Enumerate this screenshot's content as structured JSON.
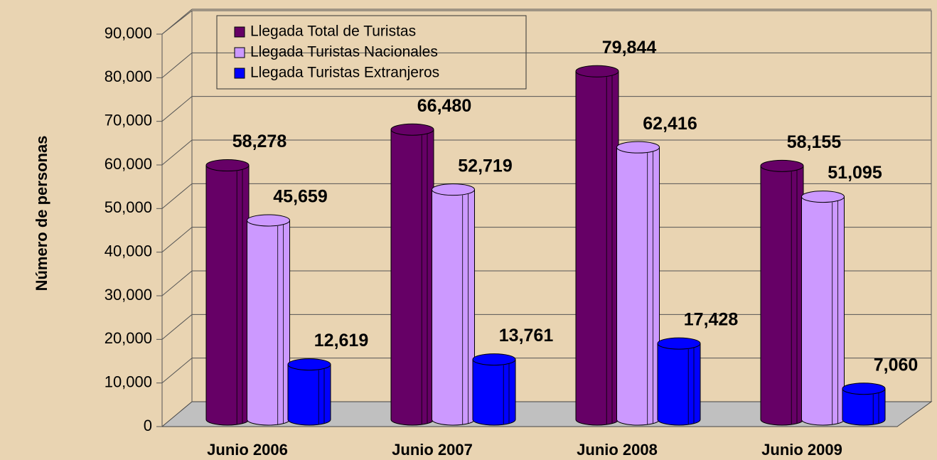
{
  "chart_data": {
    "type": "bar3d",
    "y_label": "Número de personas",
    "categories": [
      "Junio 2006",
      "Junio 2007",
      "Junio 2008",
      "Junio 2009"
    ],
    "series": [
      {
        "name": "Llegada Total de Turistas",
        "color": "#660066",
        "values": [
          58278,
          66480,
          79844,
          58155
        ],
        "value_labels": [
          "58,278",
          "66,480",
          "79,844",
          "58,155"
        ]
      },
      {
        "name": "Llegada Turistas Nacionales",
        "color": "#cc99ff",
        "values": [
          45659,
          52719,
          62416,
          51095
        ],
        "value_labels": [
          "45,659",
          "52,719",
          "62,416",
          "51,095"
        ]
      },
      {
        "name": "Llegada Turistas Extranjeros",
        "color": "#0000ff",
        "values": [
          12619,
          13761,
          17428,
          7060
        ],
        "value_labels": [
          "12,619",
          "13,761",
          "17,428",
          "7,060"
        ]
      }
    ],
    "ylim": [
      0,
      90000
    ],
    "yticks": [
      0,
      {
        "value": 10000,
        "label": "10,000"
      },
      {
        "value": 20000,
        "label": "20,000"
      },
      {
        "value": 30000,
        "label": "30,000"
      },
      {
        "value": 40000,
        "label": "40,000"
      },
      {
        "value": 50000,
        "label": "50,000"
      },
      {
        "value": 60000,
        "label": "60,000"
      },
      {
        "value": 70000,
        "label": "70,000"
      },
      {
        "value": 80000,
        "label": "80,000"
      },
      {
        "value": 90000,
        "label": "90,000"
      }
    ],
    "grid": true
  }
}
